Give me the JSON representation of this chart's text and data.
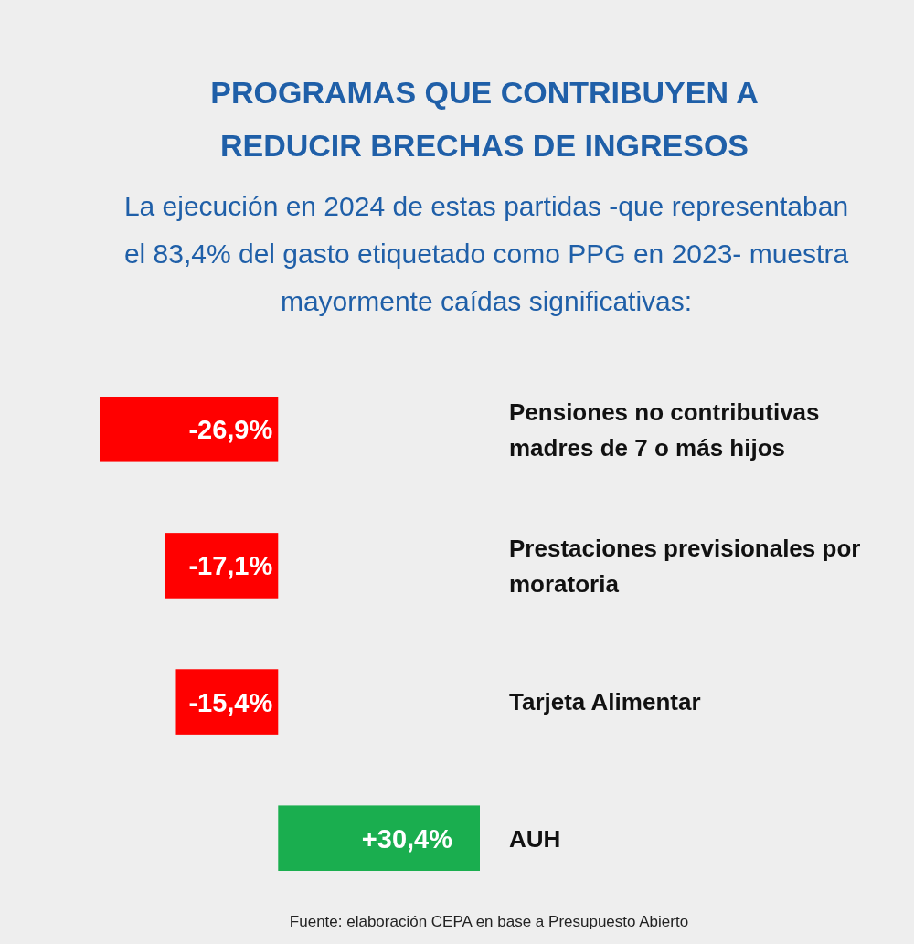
{
  "chart_data": {
    "type": "bar",
    "orientation": "horizontal",
    "title": "PROGRAMAS QUE CONTRIBUYEN A REDUCIR BRECHAS DE INGRESOS",
    "subtitle": "La ejecución en 2024 de estas partidas -que representaban el 83,4% del gasto etiquetado como PPG en 2023- muestra mayormente caídas significativas:",
    "categories": [
      "Pensiones no contributivas madres de 7 o más hijos",
      "Prestaciones previsionales por moratoria",
      "Tarjeta Alimentar",
      "AUH"
    ],
    "values": [
      -26.9,
      -17.1,
      -15.4,
      30.4
    ],
    "colors": [
      "#ff0000",
      "#ff0000",
      "#ff0000",
      "#1aae4f"
    ],
    "value_labels": [
      "-26,9%",
      "-17,1%",
      "-15,4%",
      "+30,4%"
    ],
    "annotations": [
      "Fuente: elaboración CEPA en base a Presupuesto Abierto"
    ]
  }
}
